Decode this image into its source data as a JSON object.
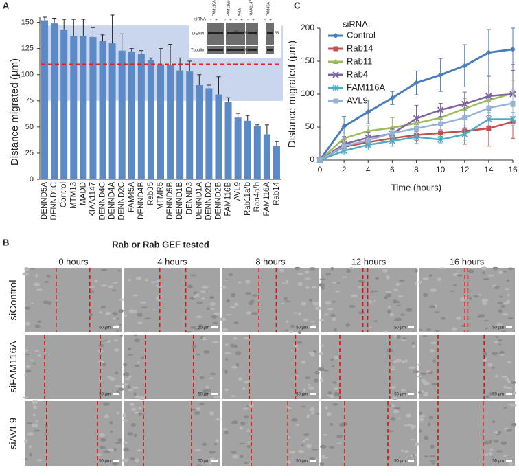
{
  "chart_data": [
    {
      "type": "bar",
      "label": "A",
      "y_label": "Distance migrated (µm)",
      "x_label": "Rab or Rab GEF tested",
      "categories": [
        "DENND5A",
        "DENND1C",
        "Control",
        "MTM13",
        "MADD",
        "KIAA1147",
        "DENND4C",
        "DENND4A",
        "DENND2C",
        "FAM45A",
        "DENND4B",
        "Rab35",
        "MTMR5",
        "DENND5B",
        "DENND1B",
        "DENND3",
        "DENND1A",
        "DENND2D",
        "DENND2B",
        "FAM116B",
        "AVL9",
        "Rab11a/b",
        "Rab4a/b",
        "FAM116A",
        "Rab14"
      ],
      "values": [
        152,
        149,
        143,
        137,
        137,
        136,
        132,
        130,
        123,
        122,
        120,
        114,
        110,
        109,
        104,
        103,
        90,
        87,
        81,
        74,
        59,
        56,
        51,
        43,
        32
      ],
      "errors": [
        3,
        5,
        10,
        16,
        16,
        9,
        6,
        27,
        16,
        3,
        3,
        2,
        15,
        20,
        12,
        10,
        10,
        3,
        17,
        4,
        4,
        5,
        1,
        9,
        4
      ],
      "color": "#5b8ac6",
      "ylim": [
        0,
        155
      ],
      "yticks": [
        0,
        25,
        50,
        75,
        100,
        125,
        150
      ],
      "band": [
        75,
        147
      ],
      "reference_line": 110,
      "inset": {
        "siRNA": "siRNA",
        "lanes": [
          "FAM116A",
          "FAM116B",
          "AVL9",
          "KIAA1147",
          "FAM45A"
        ],
        "minus": "-",
        "plus": "+",
        "rows": [
          "DENN",
          "Tubulin"
        ],
        "markers": [
          "80",
          "58",
          "58",
          "58"
        ]
      }
    },
    {
      "type": "line",
      "label": "C",
      "y_label": "Distance migrated (µm)",
      "x_label": "Time (hours)",
      "legend_title": "siRNA:",
      "x": [
        0,
        2,
        4,
        6,
        8,
        10,
        12,
        14,
        16
      ],
      "xlim": [
        0,
        16
      ],
      "xticks": [
        0,
        2,
        4,
        6,
        8,
        10,
        12,
        14,
        16
      ],
      "ylim": [
        0,
        200
      ],
      "yticks": [
        0,
        50,
        100,
        150,
        200
      ],
      "series": [
        {
          "name": "Control",
          "color": "#4a7ebb",
          "marker": "diamond",
          "values": [
            0,
            51,
            73,
            94,
            117,
            129,
            143,
            163,
            168
          ],
          "errors": [
            0,
            15,
            18,
            10,
            18,
            25,
            32,
            35,
            32
          ]
        },
        {
          "name": "Rab14",
          "color": "#c0504d",
          "marker": "square",
          "values": [
            0,
            20,
            27,
            33,
            38,
            41,
            44,
            48,
            58
          ],
          "errors": [
            0,
            5,
            5,
            5,
            8,
            5,
            20,
            27,
            25
          ]
        },
        {
          "name": "Rab11",
          "color": "#9bbb59",
          "marker": "triangle",
          "values": [
            0,
            33,
            44,
            49,
            56,
            64,
            78,
            91,
            101
          ],
          "errors": [
            0,
            8,
            8,
            15,
            10,
            10,
            15,
            20,
            20
          ]
        },
        {
          "name": "Rab4",
          "color": "#8064a2",
          "marker": "cross",
          "values": [
            0,
            24,
            34,
            40,
            63,
            76,
            85,
            97,
            100
          ],
          "errors": [
            0,
            8,
            8,
            8,
            20,
            10,
            18,
            30,
            45
          ]
        },
        {
          "name": "FAM116A",
          "color": "#4bacc6",
          "marker": "star",
          "values": [
            0,
            14,
            23,
            29,
            35,
            31,
            39,
            62,
            62
          ],
          "errors": [
            0,
            6,
            8,
            8,
            10,
            5,
            10,
            10,
            10
          ]
        },
        {
          "name": "AVL9",
          "color": "#95b3d7",
          "marker": "square",
          "values": [
            0,
            21,
            30,
            41,
            48,
            55,
            64,
            79,
            86
          ],
          "errors": [
            0,
            5,
            5,
            5,
            10,
            10,
            12,
            15,
            20
          ]
        }
      ]
    }
  ],
  "micrographs": {
    "label": "B",
    "columns": [
      "0 hours",
      "4 hours",
      "8 hours",
      "12 hours",
      "16 hours"
    ],
    "rows": [
      "siControl",
      "siFAM116A",
      "siAVL9"
    ],
    "scale_bar": "50 µm"
  }
}
